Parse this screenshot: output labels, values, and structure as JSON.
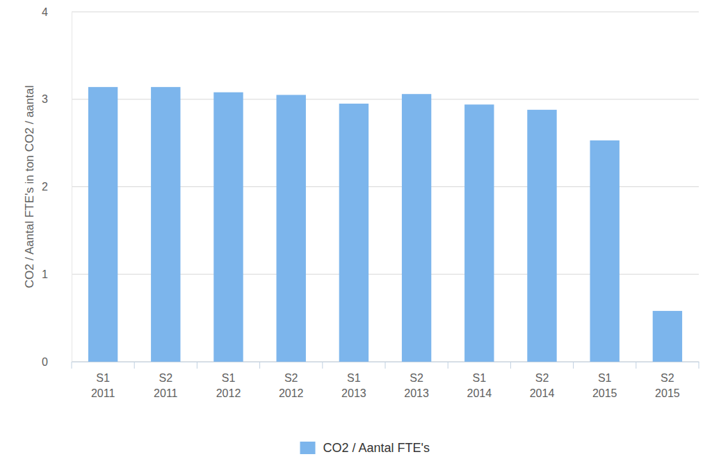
{
  "chart_data": {
    "type": "bar",
    "y_label": "CO2 / Aantal FTE's in ton CO2 / aantal",
    "categories": [
      "S1 2011",
      "S2 2011",
      "S1 2012",
      "S2 2012",
      "S1 2013",
      "S2 2013",
      "S1 2014",
      "S2 2014",
      "S1 2015",
      "S2 2015"
    ],
    "series": [
      {
        "name": "CO2 / Aantal FTE's",
        "color": "#7cb5ec",
        "values": [
          3.14,
          3.14,
          3.08,
          3.05,
          2.95,
          3.06,
          2.94,
          2.88,
          2.53,
          0.58
        ]
      }
    ],
    "ylim": [
      0,
      4
    ],
    "yticks": [
      0,
      1,
      2,
      3,
      4
    ],
    "grid": true,
    "legend": "bottom"
  }
}
